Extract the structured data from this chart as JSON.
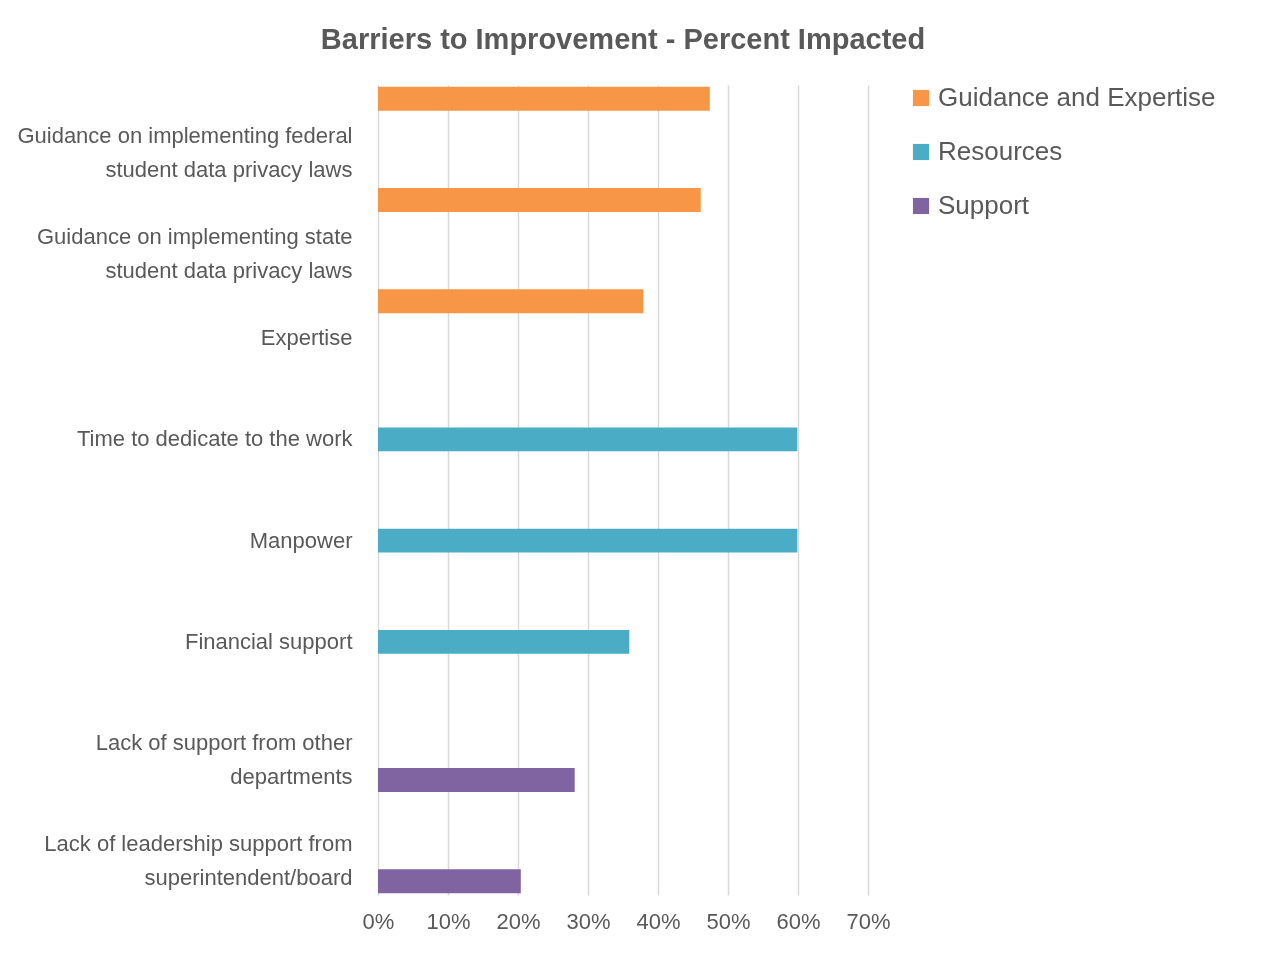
{
  "chart_data": {
    "type": "bar",
    "orientation": "horizontal",
    "title": "Barriers to Improvement - Percent Impacted",
    "categories": [
      "Guidance on implementing federal student data privacy laws",
      "Guidance on implementing state student data privacy laws",
      "Expertise",
      "Time to dedicate to the work",
      "Manpower",
      "Financial support",
      "Lack of support from other departments",
      "Lack of leadership support from superintendent/board"
    ],
    "series": [
      {
        "name": "Guidance and Expertise",
        "color": "#f79646",
        "values": [
          47.4,
          46.1,
          37.9,
          null,
          null,
          null,
          null,
          null
        ]
      },
      {
        "name": "Resources",
        "color": "#4bacc6",
        "values": [
          null,
          null,
          null,
          59.9,
          59.9,
          35.9,
          null,
          null
        ]
      },
      {
        "name": "Support",
        "color": "#8064a2",
        "values": [
          null,
          null,
          null,
          null,
          null,
          null,
          28.1,
          20.4
        ]
      }
    ],
    "xlim": [
      0,
      70
    ],
    "xticks": [
      {
        "value": 0,
        "label": "0%"
      },
      {
        "value": 10,
        "label": "10%"
      },
      {
        "value": 20,
        "label": "20%"
      },
      {
        "value": 30,
        "label": "30%"
      },
      {
        "value": 40,
        "label": "40%"
      },
      {
        "value": 50,
        "label": "50%"
      },
      {
        "value": 60,
        "label": "60%"
      },
      {
        "value": 70,
        "label": "70%"
      }
    ],
    "grid": "x",
    "legend": "right"
  }
}
